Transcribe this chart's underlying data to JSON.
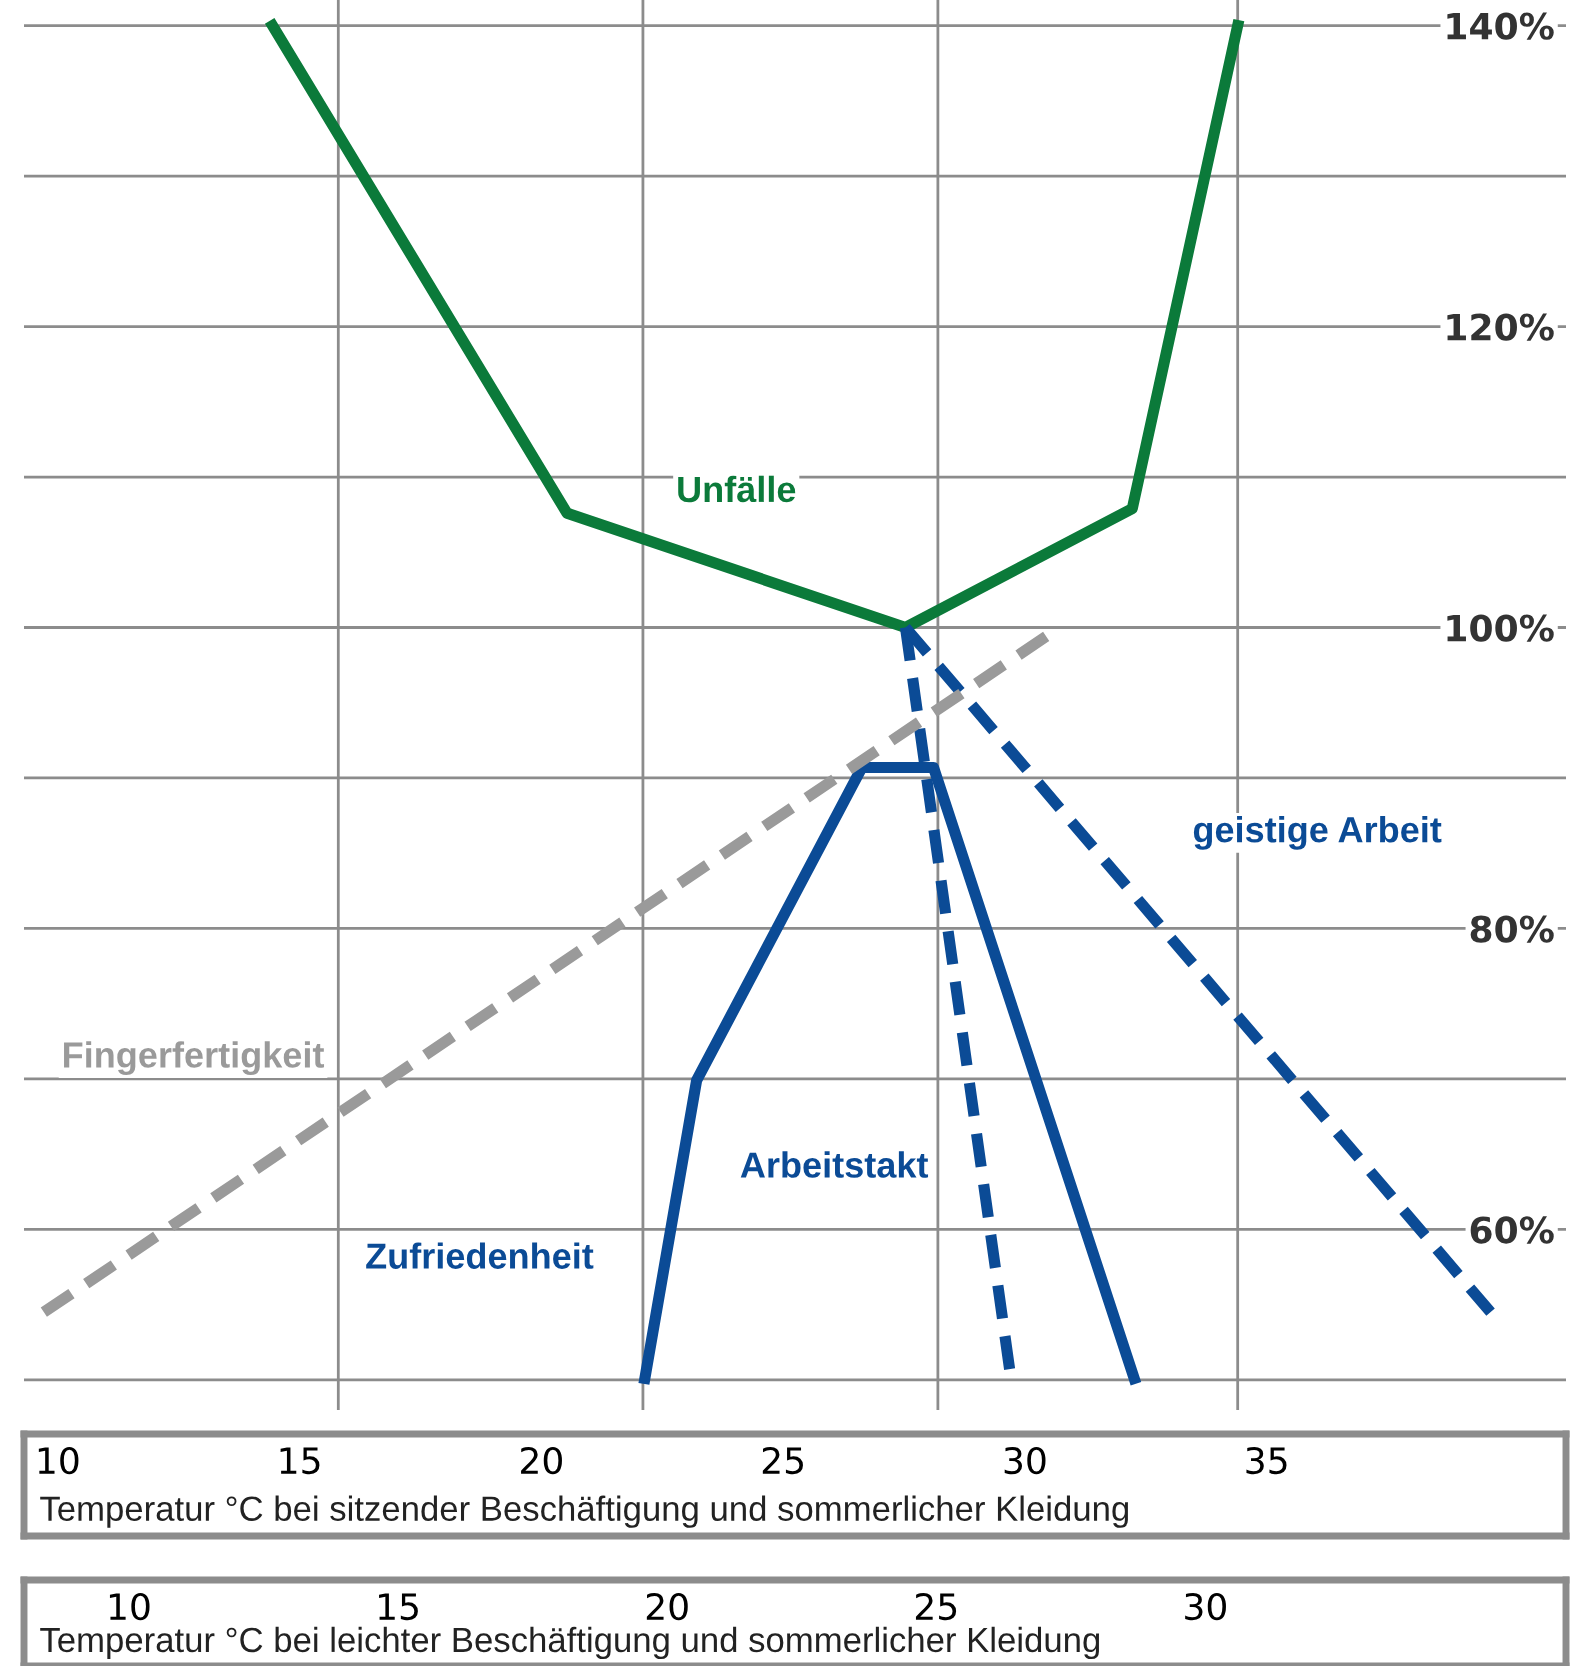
{
  "chart_data": {
    "type": "line",
    "xlabel": "Temperatur °C bei sitzender Beschäftigung und sommerlicher Kleidung",
    "x2label": "Temperatur °C bei leichter Beschäftigung und sommerlicher Kleidung",
    "xlim": [
      9.3,
      41.19
    ],
    "xticks": [
      10,
      15,
      20,
      25,
      30,
      35
    ],
    "x2lim": [
      8.05,
      36.7
    ],
    "x2ticks": [
      10,
      15,
      20,
      25,
      30
    ],
    "ylim": [
      48,
      141.7
    ],
    "yticks": [
      {
        "value": 50,
        "label": null
      },
      {
        "value": 60,
        "label": "60%"
      },
      {
        "value": 70,
        "label": null
      },
      {
        "value": 80,
        "label": "80%"
      },
      {
        "value": 90,
        "label": null
      },
      {
        "value": 100,
        "label": "100%"
      },
      {
        "value": 110,
        "label": null
      },
      {
        "value": 120,
        "label": "120%"
      },
      {
        "value": 130,
        "label": null
      },
      {
        "value": 140,
        "label": "140%"
      }
    ],
    "grid": "y",
    "ref_lines": [
      {
        "axis": "x",
        "value": 15.8,
        "label": null,
        "color": "#8c8c8c"
      },
      {
        "axis": "x",
        "value": 22.1,
        "label": null,
        "color": "#8c8c8c"
      },
      {
        "axis": "x",
        "value": 28.2,
        "label": null,
        "color": "#8c8c8c"
      },
      {
        "axis": "x",
        "value": 34.4,
        "label": null,
        "color": "#8c8c8c"
      }
    ],
    "series": [
      {
        "name": "Unfälle",
        "color": "#0b7a3a",
        "line_style": "solid",
        "x": [
          14.44,
          20.53,
          27.53,
          32.22,
          34.4
        ],
        "values": [
          140,
          107.6,
          100,
          107.9,
          140
        ]
      },
      {
        "name": "Zufriedenheit",
        "color": "#0b4b96",
        "line_style": "solid",
        "x": [
          22.14,
          23.21,
          26.63,
          28.11,
          32.26
        ],
        "values": [
          50.1,
          69.9,
          90.7,
          90.7,
          50.1
        ]
      },
      {
        "name": "Arbeitstakt",
        "color": "#0b4b96",
        "line_style": "dashed",
        "x": [
          27.53,
          29.71
        ],
        "values": [
          100,
          50.1
        ]
      },
      {
        "name": "geistige Arbeit",
        "color": "#0b4b96",
        "line_style": "dashed",
        "x": [
          27.53,
          39.63
        ],
        "values": [
          100,
          54.5
        ]
      },
      {
        "name": "Fingerfertigkeit",
        "color": "#9a9a9a",
        "line_style": "dashed",
        "x": [
          9.71,
          30.62
        ],
        "values": [
          54.5,
          99.8
        ]
      }
    ]
  }
}
